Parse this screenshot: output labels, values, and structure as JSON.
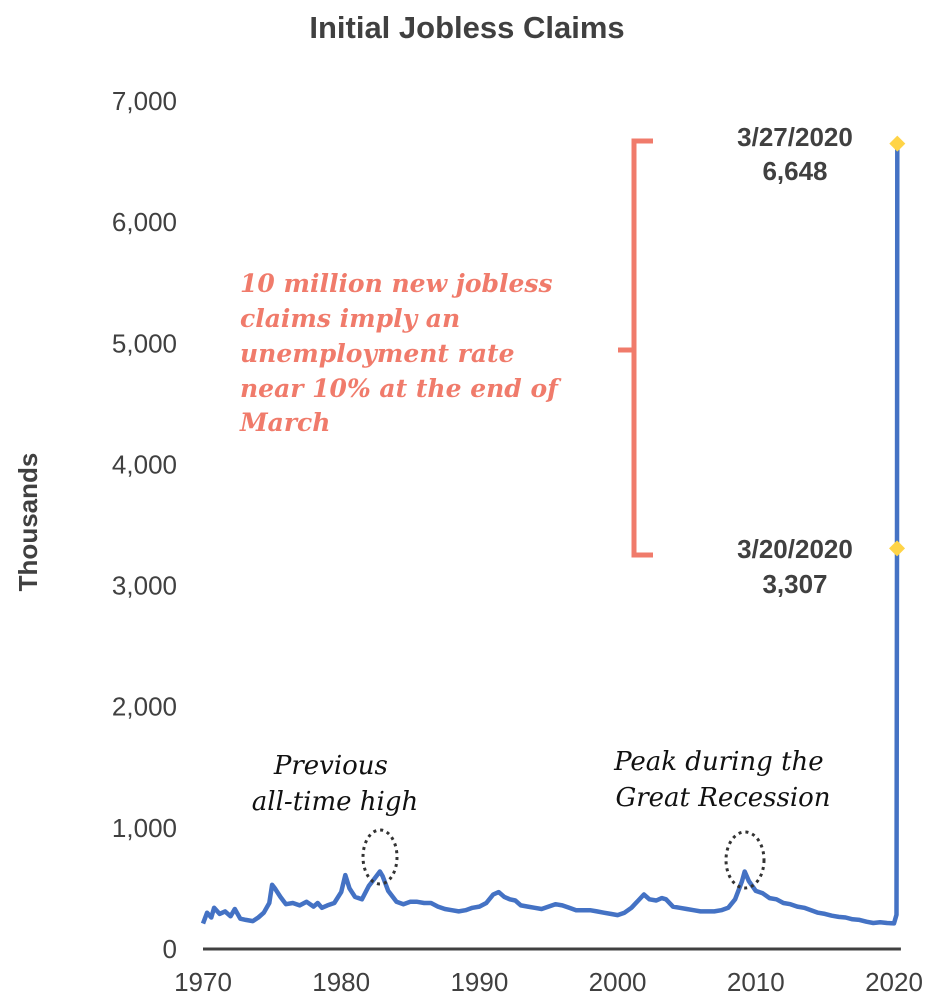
{
  "chart_data": {
    "type": "line",
    "title": "Initial Jobless Claims",
    "ylabel": "Thousands",
    "xlabel": "",
    "ylim": [
      0,
      7000
    ],
    "xlim": [
      1970,
      2020.5
    ],
    "y_ticks": [
      "0",
      "1,000",
      "2,000",
      "3,000",
      "4,000",
      "5,000",
      "6,000",
      "7,000"
    ],
    "y_tick_values": [
      0,
      1000,
      2000,
      3000,
      4000,
      5000,
      6000,
      7000
    ],
    "x_ticks": [
      "1970",
      "1980",
      "1990",
      "2000",
      "2010",
      "2020"
    ],
    "x_tick_values": [
      1970,
      1980,
      1990,
      2000,
      2010,
      2020
    ],
    "grid": false,
    "colors": {
      "line": "#4472c4",
      "marker": "#ffd447",
      "annotation": "#f07b6b",
      "axis": "#404040"
    },
    "series": [
      {
        "values": [
          [
            1970.0,
            210
          ],
          [
            1970.3,
            300
          ],
          [
            1970.6,
            260
          ],
          [
            1970.8,
            340
          ],
          [
            1971.2,
            290
          ],
          [
            1971.6,
            310
          ],
          [
            1972.0,
            270
          ],
          [
            1972.3,
            330
          ],
          [
            1972.7,
            250
          ],
          [
            1973.1,
            240
          ],
          [
            1973.6,
            230
          ],
          [
            1974.0,
            260
          ],
          [
            1974.4,
            300
          ],
          [
            1974.8,
            380
          ],
          [
            1975.0,
            530
          ],
          [
            1975.2,
            500
          ],
          [
            1975.6,
            430
          ],
          [
            1976.0,
            370
          ],
          [
            1976.5,
            380
          ],
          [
            1977.0,
            360
          ],
          [
            1977.5,
            390
          ],
          [
            1978.0,
            350
          ],
          [
            1978.3,
            380
          ],
          [
            1978.6,
            340
          ],
          [
            1979.0,
            360
          ],
          [
            1979.5,
            380
          ],
          [
            1980.0,
            470
          ],
          [
            1980.3,
            610
          ],
          [
            1980.6,
            500
          ],
          [
            1981.0,
            430
          ],
          [
            1981.5,
            410
          ],
          [
            1982.0,
            520
          ],
          [
            1982.4,
            580
          ],
          [
            1982.8,
            640
          ],
          [
            1983.0,
            600
          ],
          [
            1983.4,
            480
          ],
          [
            1984.0,
            390
          ],
          [
            1984.5,
            370
          ],
          [
            1985.0,
            390
          ],
          [
            1985.5,
            390
          ],
          [
            1986.0,
            380
          ],
          [
            1986.5,
            380
          ],
          [
            1987.0,
            350
          ],
          [
            1987.5,
            330
          ],
          [
            1988.0,
            320
          ],
          [
            1988.5,
            310
          ],
          [
            1989.0,
            320
          ],
          [
            1989.5,
            340
          ],
          [
            1990.0,
            350
          ],
          [
            1990.5,
            380
          ],
          [
            1991.0,
            450
          ],
          [
            1991.4,
            470
          ],
          [
            1991.8,
            430
          ],
          [
            1992.2,
            410
          ],
          [
            1992.6,
            400
          ],
          [
            1993.0,
            360
          ],
          [
            1993.5,
            350
          ],
          [
            1994.0,
            340
          ],
          [
            1994.5,
            330
          ],
          [
            1995.0,
            350
          ],
          [
            1995.5,
            370
          ],
          [
            1996.0,
            360
          ],
          [
            1996.5,
            340
          ],
          [
            1997.0,
            320
          ],
          [
            1997.5,
            320
          ],
          [
            1998.0,
            320
          ],
          [
            1998.5,
            310
          ],
          [
            1999.0,
            300
          ],
          [
            1999.5,
            290
          ],
          [
            2000.0,
            280
          ],
          [
            2000.5,
            300
          ],
          [
            2001.0,
            340
          ],
          [
            2001.5,
            400
          ],
          [
            2001.9,
            450
          ],
          [
            2002.3,
            410
          ],
          [
            2002.8,
            400
          ],
          [
            2003.2,
            420
          ],
          [
            2003.5,
            410
          ],
          [
            2004.0,
            350
          ],
          [
            2004.5,
            340
          ],
          [
            2005.0,
            330
          ],
          [
            2005.5,
            320
          ],
          [
            2006.0,
            310
          ],
          [
            2006.5,
            310
          ],
          [
            2007.0,
            310
          ],
          [
            2007.5,
            320
          ],
          [
            2008.0,
            340
          ],
          [
            2008.5,
            410
          ],
          [
            2009.0,
            560
          ],
          [
            2009.2,
            640
          ],
          [
            2009.5,
            560
          ],
          [
            2010.0,
            480
          ],
          [
            2010.5,
            460
          ],
          [
            2011.0,
            420
          ],
          [
            2011.5,
            410
          ],
          [
            2012.0,
            380
          ],
          [
            2012.5,
            370
          ],
          [
            2013.0,
            350
          ],
          [
            2013.5,
            340
          ],
          [
            2014.0,
            320
          ],
          [
            2014.5,
            300
          ],
          [
            2015.0,
            290
          ],
          [
            2015.5,
            275
          ],
          [
            2016.0,
            265
          ],
          [
            2016.5,
            260
          ],
          [
            2017.0,
            245
          ],
          [
            2017.5,
            240
          ],
          [
            2018.0,
            225
          ],
          [
            2018.5,
            215
          ],
          [
            2019.0,
            220
          ],
          [
            2019.5,
            215
          ],
          [
            2020.0,
            211
          ],
          [
            2020.18,
            282
          ],
          [
            2020.22,
            3307
          ],
          [
            2020.24,
            6648
          ]
        ]
      }
    ],
    "markers": [
      {
        "date": "3/20/2020",
        "x": 2020.22,
        "y": 3307,
        "label_date": "3/20/2020",
        "label_value": "3,307"
      },
      {
        "date": "3/27/2020",
        "x": 2020.24,
        "y": 6648,
        "label_date": "3/27/2020",
        "label_value": "6,648"
      }
    ],
    "annotations": {
      "bracket_text": [
        "10 million new jobless",
        "claims imply an",
        "unemployment rate",
        "near 10% at the end of",
        "March"
      ],
      "prev_high": [
        "Previous",
        "all-time high"
      ],
      "great_recession": [
        "Peak during the",
        "Great Recession"
      ]
    }
  }
}
